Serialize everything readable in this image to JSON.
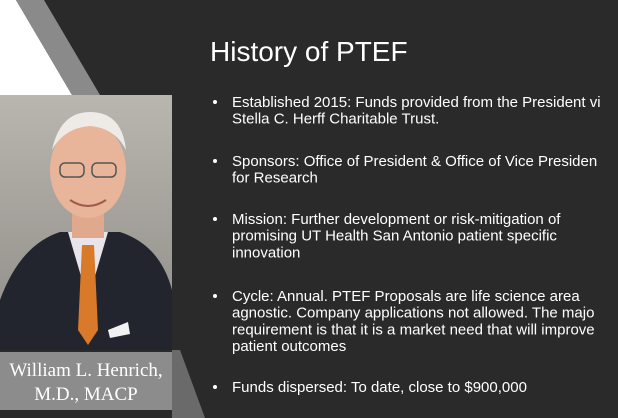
{
  "title": "History of PTEF",
  "bullets": [
    {
      "lines": [
        "Established 2015:  Funds provided from the President vi",
        "Stella C. Herff Charitable Trust."
      ]
    },
    {
      "lines": [
        "Sponsors:  Office of President & Office of  Vice Presiden",
        "for Research"
      ]
    },
    {
      "lines": [
        "Mission:  Further development or risk-mitigation of",
        "promising UT Health San Antonio patient specific",
        "innovation"
      ]
    },
    {
      "lines": [
        "Cycle:  Annual.  PTEF Proposals are life science area",
        "agnostic.  Company applications not allowed.  The majo",
        "requirement is that it is a market need that will improve",
        "patient outcomes"
      ]
    },
    {
      "lines": [
        "Funds dispersed:  To date, close to $900,000"
      ]
    }
  ],
  "caption": {
    "lines": [
      "William L. Henrich,",
      "M.D., MACP"
    ]
  }
}
